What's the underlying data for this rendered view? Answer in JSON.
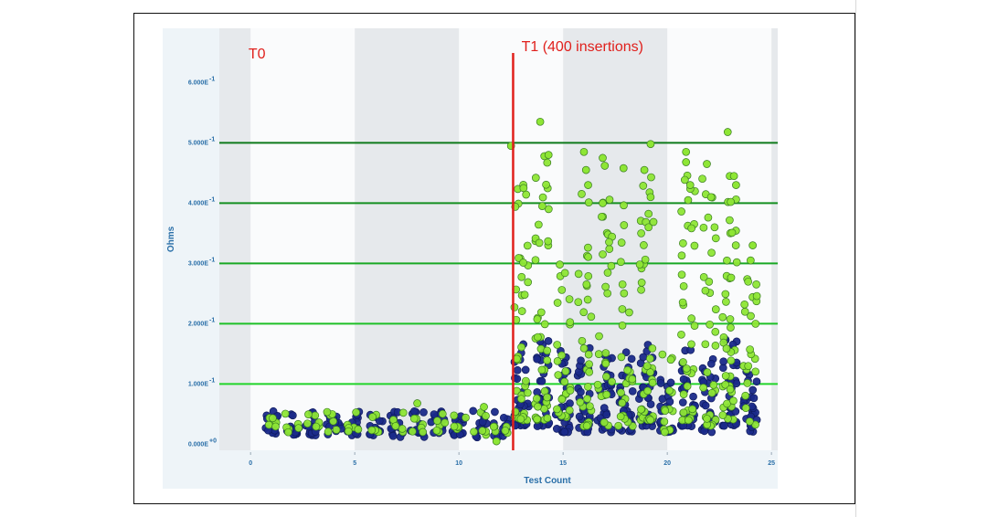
{
  "chart_data": {
    "type": "scatter",
    "title": "",
    "xlabel": "Test Count",
    "ylabel": "Ohms",
    "xlim": [
      -1.5,
      25.3
    ],
    "ylim": [
      -0.01,
      0.69
    ],
    "x_ticks": [
      0,
      5,
      10,
      15,
      20,
      25
    ],
    "x_tick_labels": [
      "0",
      "5",
      "10",
      "15",
      "20",
      "25"
    ],
    "y_ticks": [
      0,
      0.1,
      0.2,
      0.3,
      0.4,
      0.5,
      0.6
    ],
    "y_tick_labels": [
      {
        "mantissa": "0.000E",
        "exp": "+0"
      },
      {
        "mantissa": "1.000E",
        "exp": "-1"
      },
      {
        "mantissa": "2.000E",
        "exp": "-1"
      },
      {
        "mantissa": "3.000E",
        "exp": "-1"
      },
      {
        "mantissa": "4.000E",
        "exp": "-1"
      },
      {
        "mantissa": "5.000E",
        "exp": "-1"
      },
      {
        "mantissa": "6.000E",
        "exp": "-1"
      }
    ],
    "background_bands": [
      [
        -1.5,
        0
      ],
      [
        5,
        10
      ],
      [
        15,
        20
      ],
      [
        25,
        25.3
      ]
    ],
    "threshold_lines": [
      {
        "y": 0.1,
        "color": "#22d42a"
      },
      {
        "y": 0.2,
        "color": "#1ec027"
      },
      {
        "y": 0.3,
        "color": "#19a824"
      },
      {
        "y": 0.4,
        "color": "#148f20"
      },
      {
        "y": 0.5,
        "color": "#0f7a1b"
      }
    ],
    "markers": [
      {
        "name": "T0",
        "x": null,
        "label_x": -0.1
      },
      {
        "name": "T1 (400 insertions)",
        "x": 12.6,
        "label_x": 13.0
      }
    ],
    "marker_color": "#e0201c",
    "series": [
      {
        "color": "#1a2a8a",
        "clusters": [
          {
            "x": 1,
            "spread": 0.35,
            "n": 14,
            "low": 0.015,
            "high": 0.055
          },
          {
            "x": 2,
            "spread": 0.35,
            "n": 14,
            "low": 0.015,
            "high": 0.058
          },
          {
            "x": 3,
            "spread": 0.35,
            "n": 14,
            "low": 0.015,
            "high": 0.056
          },
          {
            "x": 4,
            "spread": 0.35,
            "n": 14,
            "low": 0.012,
            "high": 0.055
          },
          {
            "x": 5,
            "spread": 0.35,
            "n": 14,
            "low": 0.015,
            "high": 0.054
          },
          {
            "x": 6,
            "spread": 0.35,
            "n": 14,
            "low": 0.015,
            "high": 0.056
          },
          {
            "x": 7,
            "spread": 0.35,
            "n": 14,
            "low": 0.012,
            "high": 0.055
          },
          {
            "x": 8,
            "spread": 0.35,
            "n": 14,
            "low": 0.012,
            "high": 0.058
          },
          {
            "x": 9,
            "spread": 0.35,
            "n": 14,
            "low": 0.018,
            "high": 0.055
          },
          {
            "x": 10,
            "spread": 0.35,
            "n": 14,
            "low": 0.015,
            "high": 0.052
          },
          {
            "x": 11,
            "spread": 0.35,
            "n": 14,
            "low": 0.01,
            "high": 0.056
          },
          {
            "x": 12,
            "spread": 0.35,
            "n": 14,
            "low": 0.012,
            "high": 0.055
          },
          {
            "x": 13,
            "spread": 0.35,
            "n": 30,
            "low": 0.03,
            "high": 0.17
          },
          {
            "x": 14,
            "spread": 0.35,
            "n": 30,
            "low": 0.03,
            "high": 0.18
          },
          {
            "x": 15,
            "spread": 0.35,
            "n": 28,
            "low": 0.02,
            "high": 0.16
          },
          {
            "x": 16,
            "spread": 0.35,
            "n": 28,
            "low": 0.02,
            "high": 0.16
          },
          {
            "x": 17,
            "spread": 0.35,
            "n": 26,
            "low": 0.02,
            "high": 0.15
          },
          {
            "x": 18,
            "spread": 0.35,
            "n": 28,
            "low": 0.02,
            "high": 0.16
          },
          {
            "x": 19,
            "spread": 0.35,
            "n": 30,
            "low": 0.03,
            "high": 0.18
          },
          {
            "x": 20,
            "spread": 0.35,
            "n": 22,
            "low": 0.02,
            "high": 0.12
          },
          {
            "x": 21,
            "spread": 0.35,
            "n": 30,
            "low": 0.03,
            "high": 0.18
          },
          {
            "x": 22,
            "spread": 0.35,
            "n": 26,
            "low": 0.02,
            "high": 0.15
          },
          {
            "x": 23,
            "spread": 0.35,
            "n": 30,
            "low": 0.03,
            "high": 0.18
          },
          {
            "x": 24,
            "spread": 0.35,
            "n": 24,
            "low": 0.02,
            "high": 0.13
          }
        ]
      },
      {
        "color": "#8ee635",
        "clusters": [
          {
            "x": 1,
            "spread": 0.35,
            "n": 6,
            "low": 0.02,
            "high": 0.055
          },
          {
            "x": 2,
            "spread": 0.35,
            "n": 6,
            "low": 0.02,
            "high": 0.06
          },
          {
            "x": 3,
            "spread": 0.35,
            "n": 6,
            "low": 0.02,
            "high": 0.058
          },
          {
            "x": 4,
            "spread": 0.35,
            "n": 6,
            "low": 0.02,
            "high": 0.058
          },
          {
            "x": 5,
            "spread": 0.35,
            "n": 6,
            "low": 0.02,
            "high": 0.055
          },
          {
            "x": 6,
            "spread": 0.35,
            "n": 6,
            "low": 0.02,
            "high": 0.057
          },
          {
            "x": 7,
            "spread": 0.35,
            "n": 6,
            "low": 0.015,
            "high": 0.056
          },
          {
            "x": 8,
            "spread": 0.35,
            "n": 6,
            "low": 0.02,
            "high": 0.058
          },
          {
            "x": 9,
            "spread": 0.35,
            "n": 6,
            "low": 0.02,
            "high": 0.058
          },
          {
            "x": 10,
            "spread": 0.35,
            "n": 6,
            "low": 0.02,
            "high": 0.055
          },
          {
            "x": 11,
            "spread": 0.35,
            "n": 6,
            "low": 0.015,
            "high": 0.06
          },
          {
            "x": 12,
            "spread": 0.35,
            "n": 6,
            "low": 0.015,
            "high": 0.055
          },
          {
            "x": 13,
            "spread": 0.35,
            "n": 38,
            "low": 0.04,
            "high": 0.45
          },
          {
            "x": 14,
            "spread": 0.35,
            "n": 40,
            "low": 0.04,
            "high": 0.48
          },
          {
            "x": 15,
            "spread": 0.35,
            "n": 26,
            "low": 0.04,
            "high": 0.3
          },
          {
            "x": 16,
            "spread": 0.35,
            "n": 30,
            "low": 0.03,
            "high": 0.48
          },
          {
            "x": 17,
            "spread": 0.35,
            "n": 28,
            "low": 0.03,
            "high": 0.47
          },
          {
            "x": 18,
            "spread": 0.35,
            "n": 26,
            "low": 0.03,
            "high": 0.45
          },
          {
            "x": 19,
            "spread": 0.35,
            "n": 36,
            "low": 0.04,
            "high": 0.45
          },
          {
            "x": 20,
            "spread": 0.35,
            "n": 14,
            "low": 0.02,
            "high": 0.15
          },
          {
            "x": 21,
            "spread": 0.35,
            "n": 34,
            "low": 0.04,
            "high": 0.47
          },
          {
            "x": 22,
            "spread": 0.35,
            "n": 30,
            "low": 0.03,
            "high": 0.45
          },
          {
            "x": 23,
            "spread": 0.35,
            "n": 38,
            "low": 0.04,
            "high": 0.44
          },
          {
            "x": 24,
            "spread": 0.35,
            "n": 22,
            "low": 0.03,
            "high": 0.33
          }
        ]
      }
    ],
    "extra_points": [
      [
        8.0,
        0.068
      ],
      [
        11.2,
        0.062
      ],
      [
        11.8,
        0.005
      ],
      [
        12.5,
        0.495
      ],
      [
        13.9,
        0.535
      ],
      [
        14.1,
        0.478
      ],
      [
        14.3,
        0.48
      ],
      [
        16.0,
        0.485
      ],
      [
        16.1,
        0.455
      ],
      [
        16.2,
        0.43
      ],
      [
        16.9,
        0.475
      ],
      [
        17.0,
        0.462
      ],
      [
        16.9,
        0.4
      ],
      [
        17.9,
        0.458
      ],
      [
        18.9,
        0.455
      ],
      [
        19.2,
        0.498
      ],
      [
        19.2,
        0.41
      ],
      [
        20.9,
        0.485
      ],
      [
        20.9,
        0.468
      ],
      [
        21.1,
        0.43
      ],
      [
        21.0,
        0.405
      ],
      [
        21.9,
        0.465
      ],
      [
        22.1,
        0.41
      ],
      [
        22.9,
        0.518
      ],
      [
        23.0,
        0.445
      ],
      [
        23.2,
        0.445
      ],
      [
        23.3,
        0.43
      ],
      [
        24.1,
        0.33
      ],
      [
        24.0,
        0.305
      ],
      [
        14.0,
        0.395
      ],
      [
        13.1,
        0.425
      ],
      [
        19.1,
        0.36
      ]
    ]
  }
}
